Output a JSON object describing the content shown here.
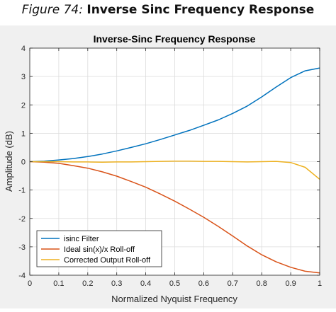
{
  "caption": {
    "prefix": "Figure 74:",
    "title": "Inverse Sinc Frequency Response"
  },
  "chart_data": {
    "type": "line",
    "title": "Inverse-Sinc Frequency Response",
    "xlabel": "Normalized Nyquist Frequency",
    "ylabel": "Amplitude (dB)",
    "xlim": [
      0,
      1
    ],
    "ylim": [
      -4,
      4
    ],
    "xticks": [
      0,
      0.1,
      0.2,
      0.3,
      0.4,
      0.5,
      0.6,
      0.7,
      0.8,
      0.9,
      1
    ],
    "xtick_labels": [
      "0",
      "0.1",
      "0.2",
      "0.3",
      "0.4",
      "0.5",
      "0.6",
      "0.7",
      "0.8",
      "0.9",
      "1"
    ],
    "yticks": [
      -4,
      -3,
      -2,
      -1,
      0,
      1,
      2,
      3,
      4
    ],
    "ytick_labels": [
      "-4",
      "-3",
      "-2",
      "-1",
      "0",
      "1",
      "2",
      "3",
      "4"
    ],
    "grid": true,
    "legend_position": "bottom-left",
    "x": [
      0,
      0.05,
      0.1,
      0.15,
      0.2,
      0.25,
      0.3,
      0.35,
      0.4,
      0.45,
      0.5,
      0.55,
      0.6,
      0.65,
      0.7,
      0.75,
      0.8,
      0.85,
      0.9,
      0.95,
      1
    ],
    "series": [
      {
        "name": "isinc Filter",
        "color": "#0072BD",
        "values": [
          0,
          0.02,
          0.06,
          0.11,
          0.18,
          0.27,
          0.38,
          0.5,
          0.63,
          0.78,
          0.94,
          1.1,
          1.28,
          1.47,
          1.7,
          1.96,
          2.28,
          2.63,
          2.96,
          3.2,
          3.3
        ]
      },
      {
        "name": "Ideal sin(x)/x Roll-off",
        "color": "#D95319",
        "values": [
          0,
          -0.02,
          -0.06,
          -0.14,
          -0.23,
          -0.36,
          -0.51,
          -0.7,
          -0.9,
          -1.14,
          -1.39,
          -1.67,
          -1.96,
          -2.28,
          -2.62,
          -2.97,
          -3.28,
          -3.53,
          -3.72,
          -3.86,
          -3.92
        ]
      },
      {
        "name": "Corrected Output Roll-off",
        "color": "#EDB120",
        "values": [
          0,
          0,
          0,
          -0.01,
          -0.01,
          -0.02,
          -0.01,
          -0.01,
          0,
          0.01,
          0.02,
          0.02,
          0.01,
          0.01,
          0,
          -0.01,
          0,
          0.01,
          -0.03,
          -0.2,
          -0.62
        ]
      }
    ]
  }
}
